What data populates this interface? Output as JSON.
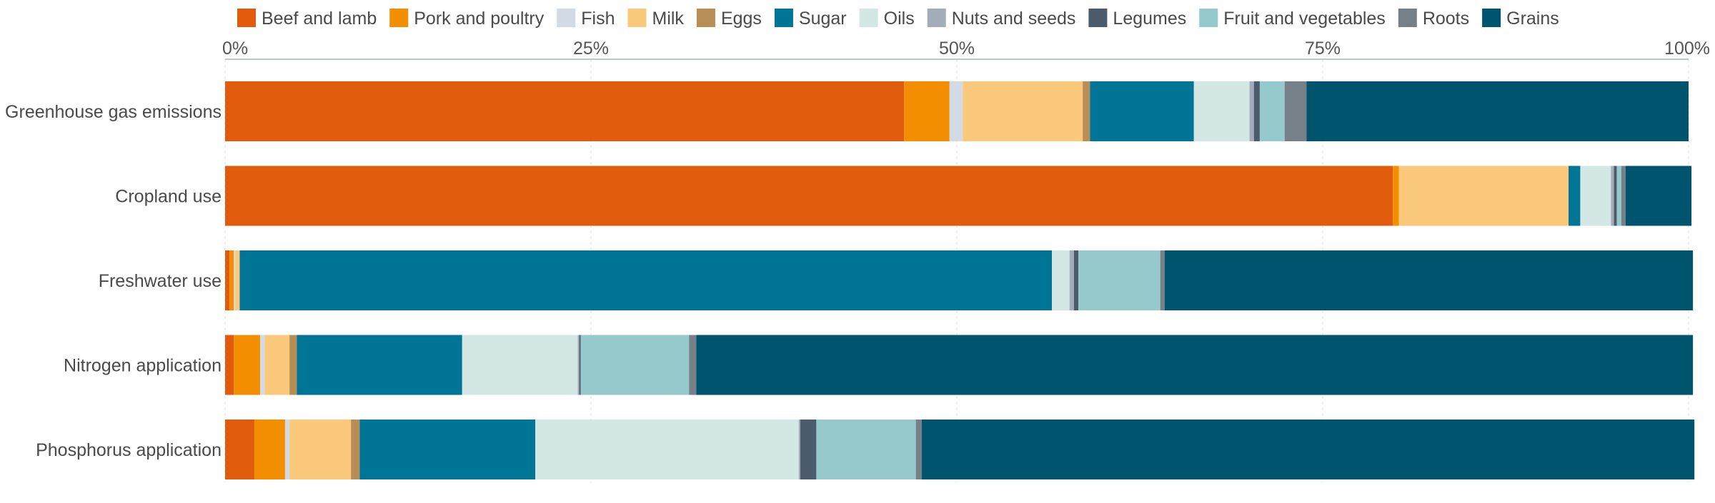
{
  "chart_data": {
    "type": "bar",
    "orientation": "horizontal",
    "stacked": true,
    "xlim": [
      0,
      100
    ],
    "x_ticks": [
      0,
      25,
      50,
      75,
      100
    ],
    "x_tick_labels": [
      "0%",
      "25%",
      "50%",
      "75%",
      "100%"
    ],
    "x_axis_position": "top",
    "legend_position": "top",
    "grid": true,
    "categories": [
      "Greenhouse gas emissions",
      "Cropland use",
      "Freshwater use",
      "Nitrogen application",
      "Phosphorus application"
    ],
    "series": [
      {
        "name": "Beef and lamb",
        "color": "#e05b0b",
        "values": [
          46.4,
          79.8,
          0.3,
          0.6,
          2.0
        ]
      },
      {
        "name": "Pork and poultry",
        "color": "#f28e00",
        "values": [
          3.1,
          0.4,
          0.3,
          1.8,
          2.1
        ]
      },
      {
        "name": "Fish",
        "color": "#d2dae6",
        "values": [
          0.9,
          0.0,
          0.1,
          0.3,
          0.3
        ]
      },
      {
        "name": "Milk",
        "color": "#fbc97b",
        "values": [
          8.2,
          11.6,
          0.3,
          1.7,
          4.2
        ]
      },
      {
        "name": "Eggs",
        "color": "#b88e57",
        "values": [
          0.5,
          0.0,
          0.0,
          0.5,
          0.6
        ]
      },
      {
        "name": "Sugar",
        "color": "#007596",
        "values": [
          7.1,
          0.8,
          55.5,
          11.3,
          12.0
        ]
      },
      {
        "name": "Oils",
        "color": "#d3e7e5",
        "values": [
          3.8,
          2.1,
          1.2,
          7.9,
          18.0
        ]
      },
      {
        "name": "Nuts and seeds",
        "color": "#a3adb9",
        "values": [
          0.3,
          0.2,
          0.3,
          0.1,
          0.1
        ]
      },
      {
        "name": "Legumes",
        "color": "#4b5b6c",
        "values": [
          0.4,
          0.2,
          0.3,
          0.1,
          1.1
        ]
      },
      {
        "name": "Fruit and vegetables",
        "color": "#95c9cb",
        "values": [
          1.7,
          0.3,
          5.6,
          7.4,
          6.8
        ]
      },
      {
        "name": "Roots",
        "color": "#768089",
        "values": [
          1.5,
          0.3,
          0.3,
          0.5,
          0.4
        ]
      },
      {
        "name": "Grains",
        "color": "#01546d",
        "values": [
          26.1,
          4.5,
          36.1,
          68.1,
          52.8
        ]
      }
    ]
  }
}
